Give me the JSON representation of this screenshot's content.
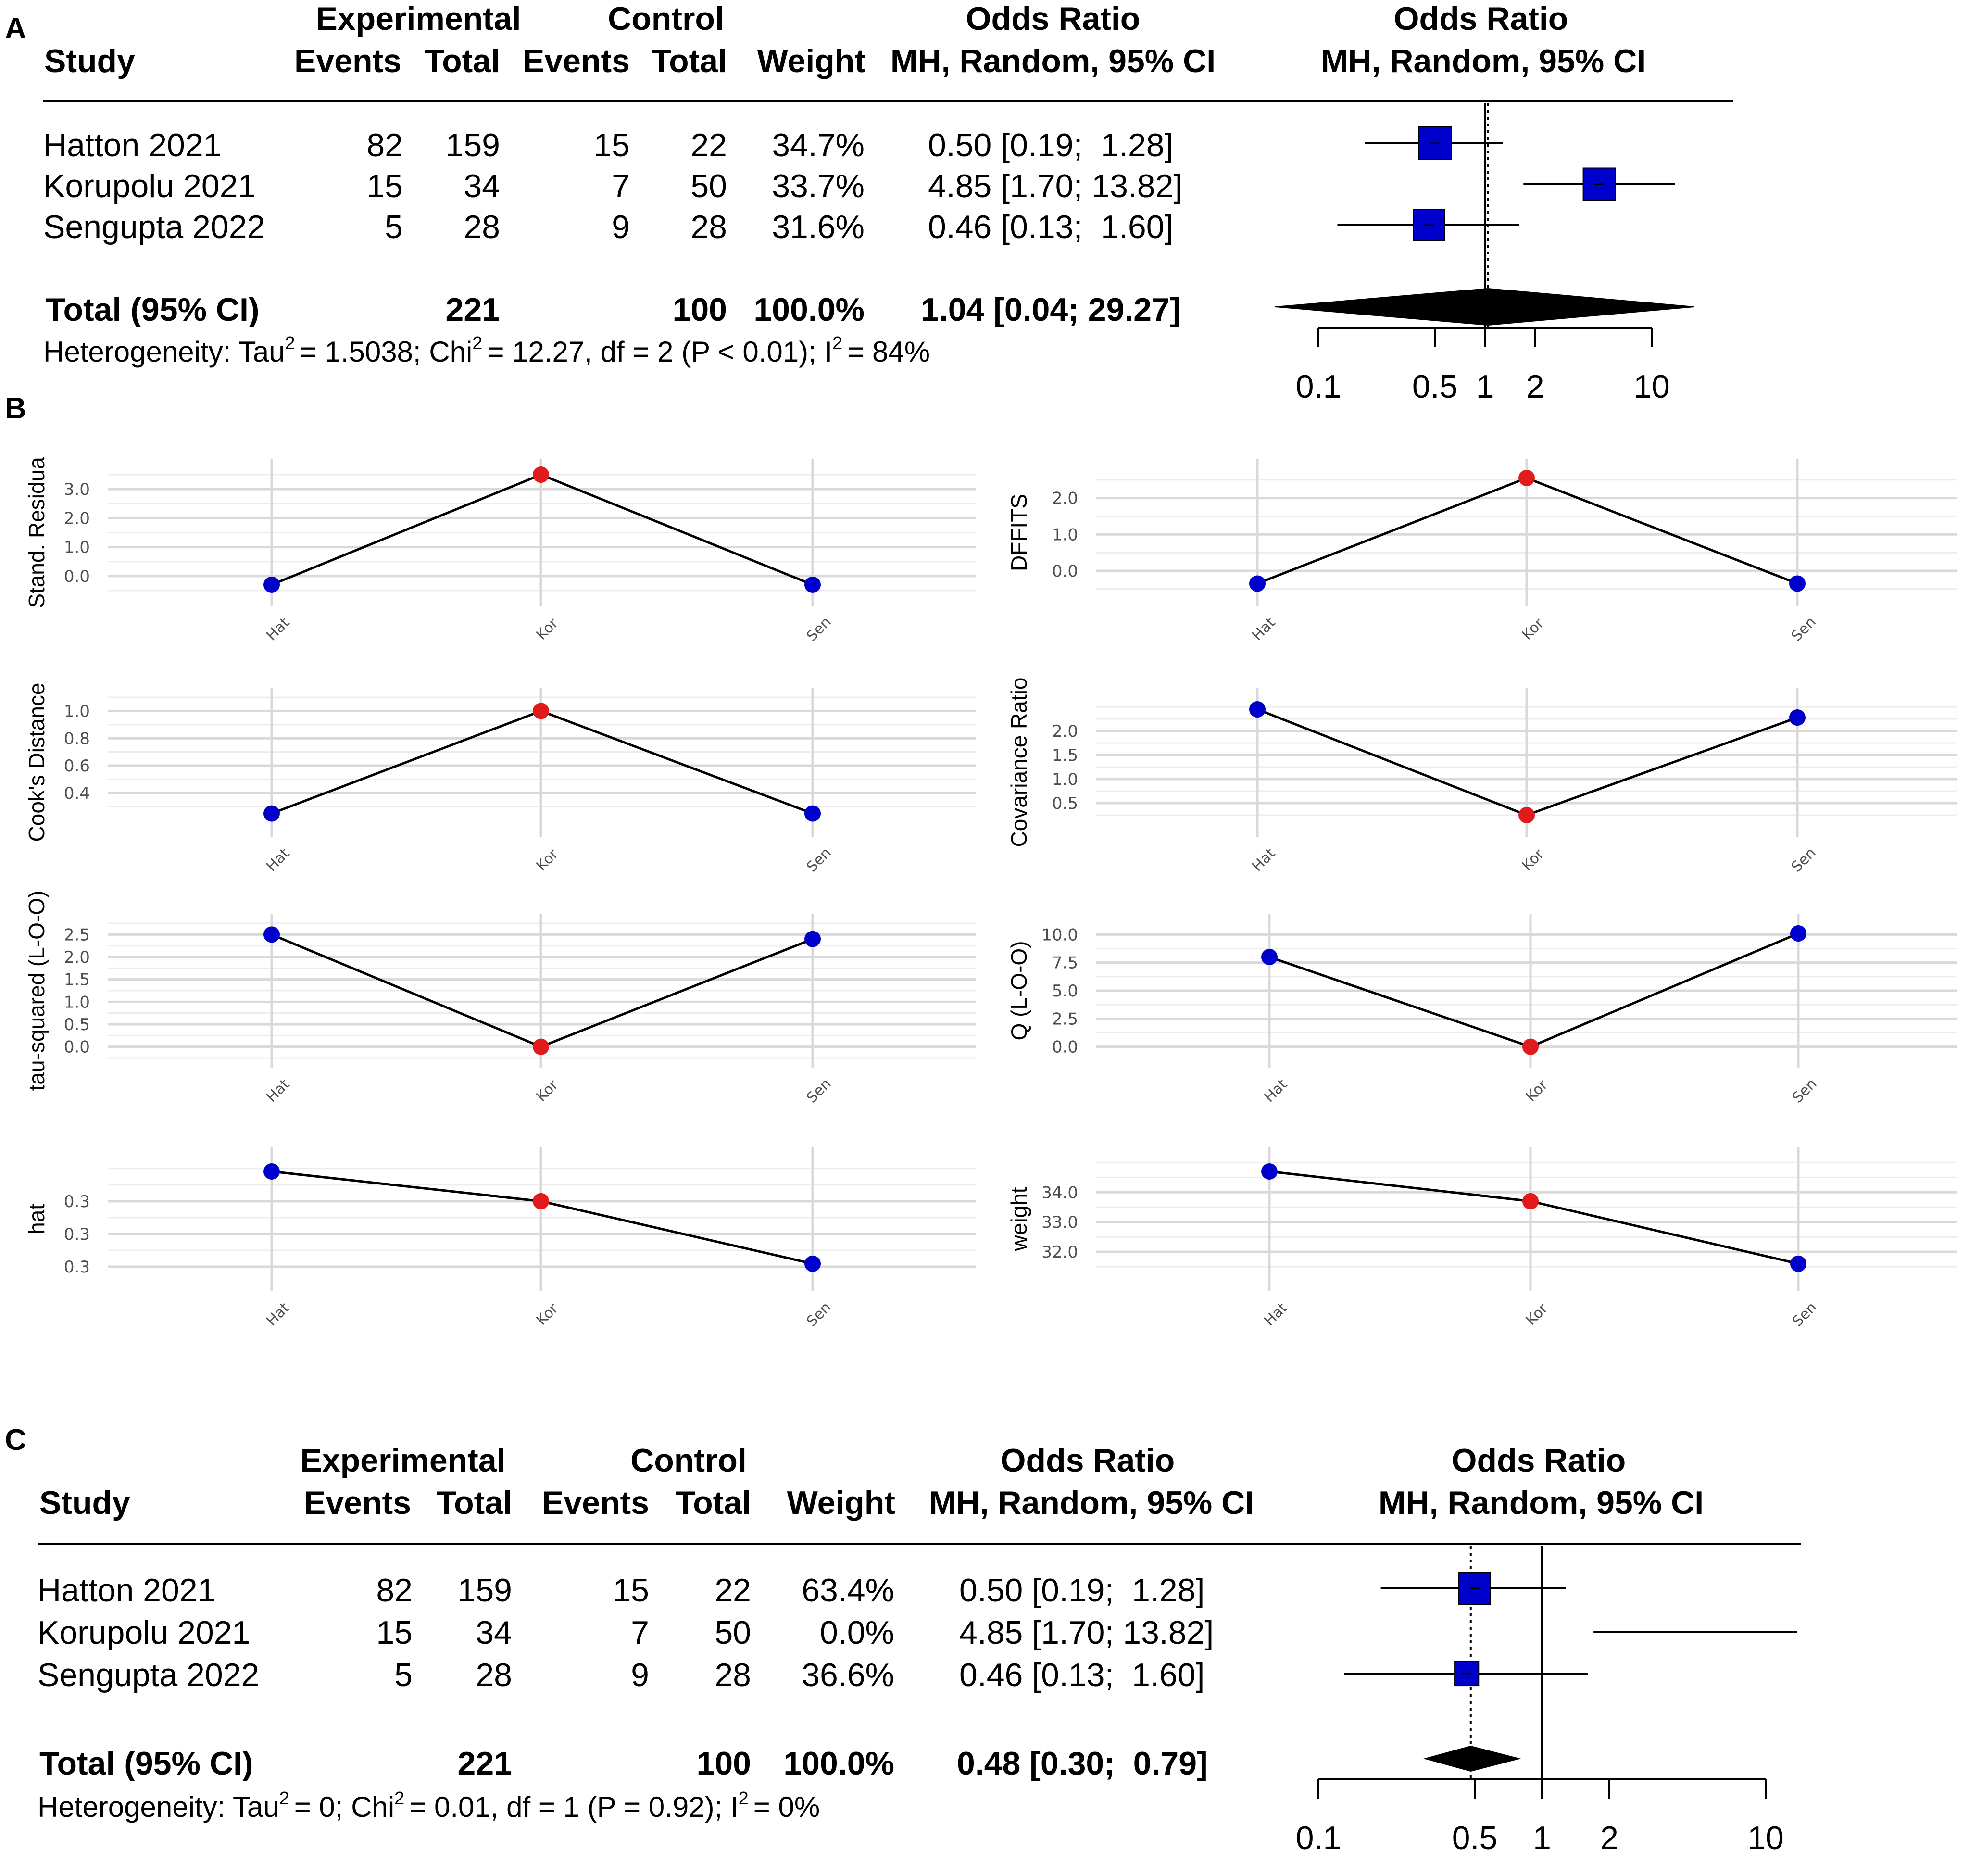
{
  "panel_labels": [
    "A",
    "B",
    "C"
  ],
  "forest_headers": {
    "study": "Study",
    "experimental": "Experimental",
    "control": "Control",
    "events": "Events",
    "total": "Total",
    "weight": "Weight",
    "odds_ratio": "Odds Ratio",
    "method": "MH, Random, 95% CI"
  },
  "forest_a": {
    "rows": [
      {
        "study": "Hatton 2021",
        "exp_events": "82",
        "exp_total": "159",
        "ctl_events": "15",
        "ctl_total": "22",
        "weight": "34.7%",
        "ci_text": "0.50 [0.19;  1.28]"
      },
      {
        "study": "Korupolu 2021",
        "exp_events": "15",
        "exp_total": "34",
        "ctl_events": "7",
        "ctl_total": "50",
        "weight": "33.7%",
        "ci_text": "4.85 [1.70; 13.82]"
      },
      {
        "study": "Sengupta 2022",
        "exp_events": "5",
        "exp_total": "28",
        "ctl_events": "9",
        "ctl_total": "28",
        "weight": "31.6%",
        "ci_text": "0.46 [0.13;  1.60]"
      }
    ],
    "total": {
      "label": "Total (95% CI)",
      "exp_total": "221",
      "ctl_total": "100",
      "weight": "100.0%",
      "ci_text": "1.04 [0.04; 29.27]"
    },
    "heterogeneity": {
      "prefix": "Heterogeneity: Tau",
      "tau2": "= 1.5038; Chi",
      "chi2": "= 12.27, df = 2 (P < 0.01); I",
      "i2": "= 84%"
    },
    "axis_ticks": [
      "0.1",
      "0.5",
      "1",
      "2",
      "10"
    ]
  },
  "forest_c": {
    "rows": [
      {
        "study": "Hatton 2021",
        "exp_events": "82",
        "exp_total": "159",
        "ctl_events": "15",
        "ctl_total": "22",
        "weight": "63.4%",
        "ci_text": "0.50 [0.19;  1.28]"
      },
      {
        "study": "Korupolu 2021",
        "exp_events": "15",
        "exp_total": "34",
        "ctl_events": "7",
        "ctl_total": "50",
        "weight": "0.0%",
        "ci_text": "4.85 [1.70; 13.82]"
      },
      {
        "study": "Sengupta 2022",
        "exp_events": "5",
        "exp_total": "28",
        "ctl_events": "9",
        "ctl_total": "28",
        "weight": "36.6%",
        "ci_text": "0.46 [0.13;  1.60]"
      }
    ],
    "total": {
      "label": "Total (95% CI)",
      "exp_total": "221",
      "ctl_total": "100",
      "weight": "100.0%",
      "ci_text": "0.48 [0.30;  0.79]"
    },
    "heterogeneity": {
      "prefix": "Heterogeneity: Tau",
      "tau2": "= 0; Chi",
      "chi2": "= 0.01, df = 1 (P = 0.92); I",
      "i2": "= 0%"
    },
    "axis_ticks": [
      "0.1",
      "0.5",
      "1",
      "2",
      "10"
    ]
  },
  "superscript_2": "2",
  "chart_data": [
    {
      "type": "forest",
      "panel": "A",
      "scale": "log",
      "studies": [
        "Hatton 2021",
        "Korupolu 2021",
        "Sengupta 2022"
      ],
      "or": [
        0.5,
        4.85,
        0.46
      ],
      "lower": [
        0.19,
        1.7,
        0.13
      ],
      "upper": [
        1.28,
        13.82,
        1.6
      ],
      "weights": [
        34.7,
        33.7,
        31.6
      ],
      "pooled": {
        "or": 1.04,
        "lower": 0.04,
        "upper": 29.27
      },
      "xticks": [
        0.1,
        0.5,
        1,
        2,
        10
      ],
      "xlim": [
        0.1,
        10
      ],
      "null_line": 1
    },
    {
      "type": "line",
      "panel": "B",
      "title": "Stand. Residua",
      "ylabel": "Stand. Residua",
      "categories": [
        "Hat",
        "Kor",
        "Sen"
      ],
      "values": [
        -0.3,
        3.5,
        -0.3
      ],
      "highlight": [
        false,
        true,
        false
      ],
      "yticks": [
        "0.0",
        "1.0",
        "2.0",
        "3.0"
      ],
      "ylim": [
        -0.7,
        3.7
      ]
    },
    {
      "type": "line",
      "panel": "B",
      "title": "DFFITS",
      "ylabel": "DFFITS",
      "categories": [
        "Hat",
        "Kor",
        "Sen"
      ],
      "values": [
        -0.35,
        2.55,
        -0.35
      ],
      "highlight": [
        false,
        true,
        false
      ],
      "yticks": [
        "0.0",
        "1.0",
        "2.0"
      ],
      "ylim": [
        -0.7,
        2.8
      ]
    },
    {
      "type": "line",
      "panel": "B",
      "title": "Cook's Distance",
      "ylabel": "Cook's Distance",
      "categories": [
        "Hat",
        "Kor",
        "Sen"
      ],
      "values": [
        0.25,
        1.0,
        0.25
      ],
      "highlight": [
        false,
        true,
        false
      ],
      "yticks": [
        "0.4",
        "0.6",
        "0.8",
        "1.0"
      ],
      "ylim": [
        0.15,
        1.1
      ]
    },
    {
      "type": "line",
      "panel": "B",
      "title": "Covariance Ratio",
      "ylabel": "Covariance Ratio",
      "categories": [
        "Hat",
        "Kor",
        "Sen"
      ],
      "values": [
        2.45,
        0.25,
        2.28
      ],
      "highlight": [
        false,
        true,
        false
      ],
      "yticks": [
        "0.5",
        "1.0",
        "1.5",
        "2.0"
      ],
      "ylim": [
        0.0,
        2.7
      ]
    },
    {
      "type": "line",
      "panel": "B",
      "title": "tau-squared (L-O-O)",
      "ylabel": "tau-squared (L-O-O)",
      "categories": [
        "Hat",
        "Kor",
        "Sen"
      ],
      "values": [
        2.5,
        0.0,
        2.4
      ],
      "highlight": [
        false,
        true,
        false
      ],
      "yticks": [
        "0.0",
        "0.5",
        "1.0",
        "1.5",
        "2.0",
        "2.5"
      ],
      "ylim": [
        -0.25,
        2.75
      ]
    },
    {
      "type": "line",
      "panel": "B",
      "title": "Q (L-O-O)",
      "ylabel": "Q (L-O-O)",
      "categories": [
        "Hat",
        "Kor",
        "Sen"
      ],
      "values": [
        8.0,
        0.0,
        10.1
      ],
      "highlight": [
        false,
        true,
        false
      ],
      "yticks": [
        "0.0",
        "2.5",
        "5.0",
        "7.5",
        "10.0"
      ],
      "ylim": [
        -1.0,
        11.0
      ]
    },
    {
      "type": "line",
      "panel": "B",
      "title": "hat",
      "ylabel": "hat",
      "categories": [
        "Hat",
        "Kor",
        "Sen"
      ],
      "values": [
        0.347,
        0.337,
        0.316
      ],
      "highlight": [
        false,
        true,
        false
      ],
      "yticks": [
        "0.3",
        "0.3",
        "0.3"
      ],
      "ylim": [
        0.31,
        0.352
      ]
    },
    {
      "type": "line",
      "panel": "B",
      "title": "weight",
      "ylabel": "weight",
      "categories": [
        "Hat",
        "Kor",
        "Sen"
      ],
      "values": [
        34.7,
        33.7,
        31.6
      ],
      "highlight": [
        false,
        true,
        false
      ],
      "yticks": [
        "32.0",
        "33.0",
        "34.0"
      ],
      "ylim": [
        31.0,
        35.2
      ]
    },
    {
      "type": "forest",
      "panel": "C",
      "scale": "log",
      "studies": [
        "Hatton 2021",
        "Korupolu 2021",
        "Sengupta 2022"
      ],
      "or": [
        0.5,
        4.85,
        0.46
      ],
      "lower": [
        0.19,
        1.7,
        0.13
      ],
      "upper": [
        1.28,
        13.82,
        1.6
      ],
      "weights": [
        63.4,
        0.0,
        36.6
      ],
      "pooled": {
        "or": 0.48,
        "lower": 0.3,
        "upper": 0.79
      },
      "xticks": [
        0.1,
        0.5,
        1,
        2,
        10
      ],
      "xlim": [
        0.1,
        10
      ],
      "null_line": 1
    }
  ],
  "colors": {
    "square": "#0000cc",
    "point_normal": "#0000cc",
    "point_highlight": "#e31a1c",
    "line": "#000000"
  }
}
